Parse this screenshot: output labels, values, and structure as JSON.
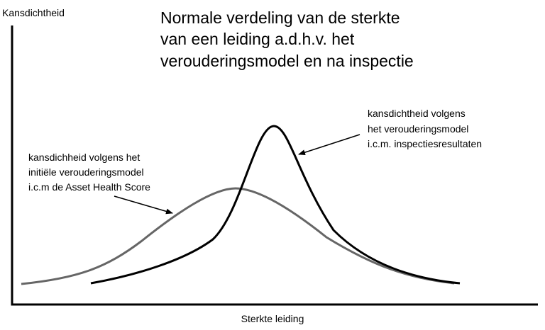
{
  "diagram": {
    "title_lines": [
      "Normale verdeling van de sterkte",
      "van een leiding a.d.h.v. het",
      "verouderingsmodel en na inspectie"
    ],
    "y_axis_label": "Kansdichtheid",
    "x_axis_label": "Sterkte leiding",
    "curve_initial": {
      "label_lines": [
        "kansdichheid volgens het",
        "initiële verouderingsmodel",
        "i.c.m de Asset Health Score"
      ],
      "stroke_color": "#666666"
    },
    "curve_inspection": {
      "label_lines": [
        "kansdichtheid volgens",
        "het verouderingsmodel",
        "i.c.m. inspectiesresultaten"
      ],
      "stroke_color": "#000000"
    }
  }
}
